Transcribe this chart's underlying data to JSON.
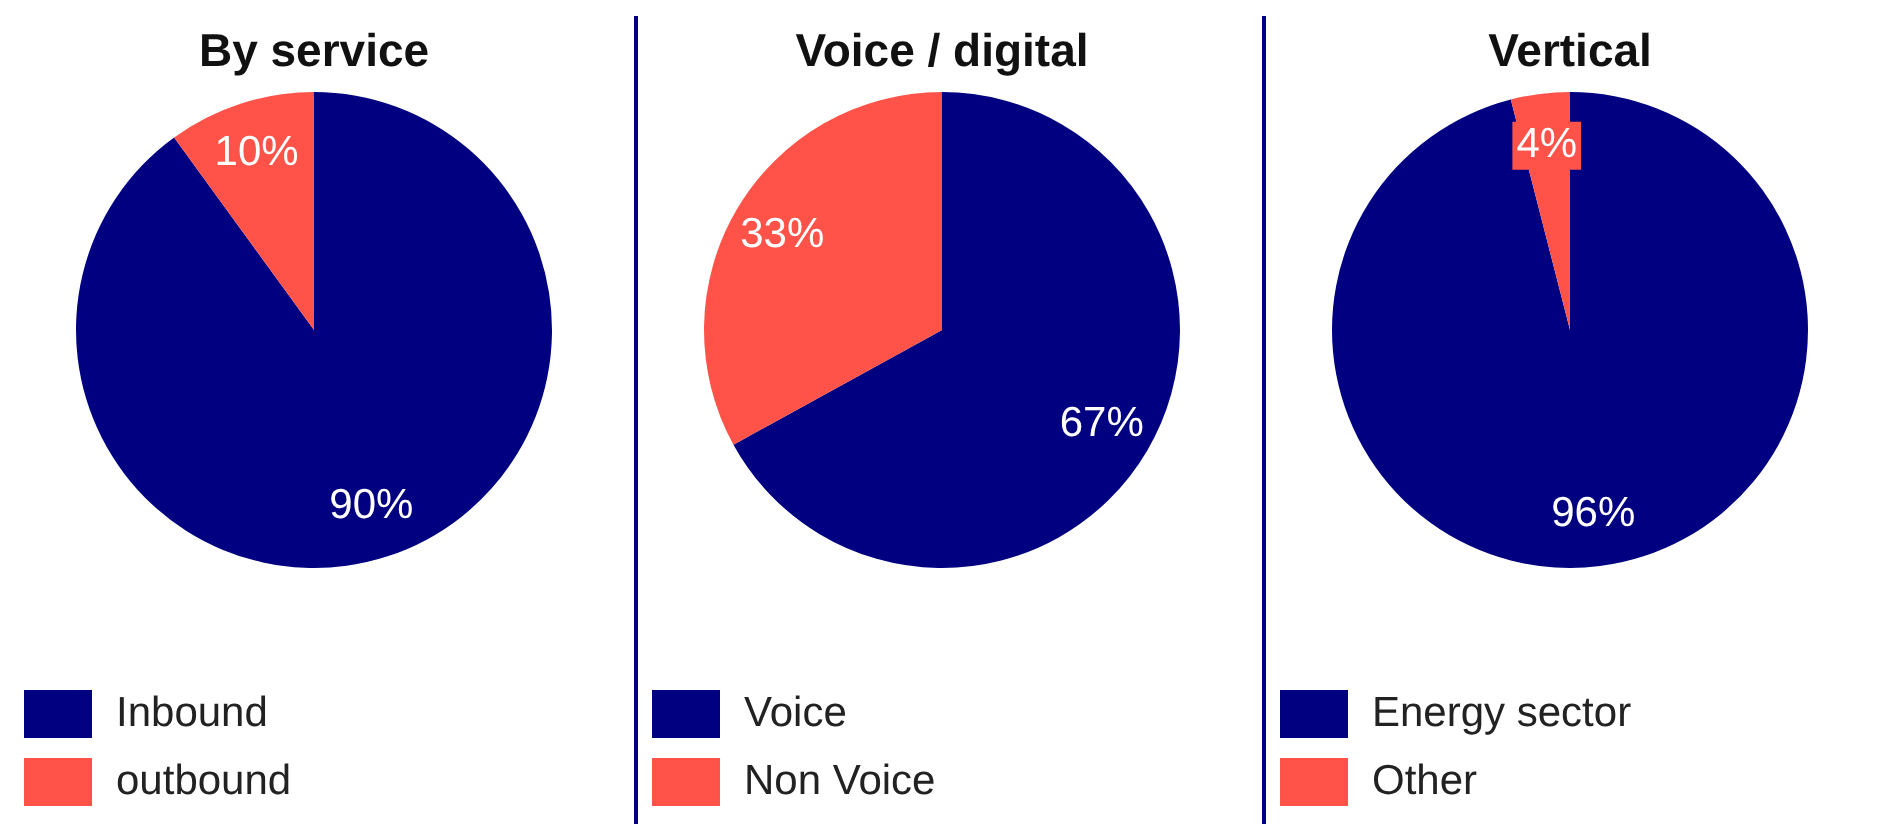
{
  "chart_data": [
    {
      "type": "pie",
      "title": "By service",
      "categories": [
        "Inbound",
        "outbound"
      ],
      "values": [
        90,
        10
      ],
      "colors": [
        "#000080",
        "#ff5349"
      ],
      "value_labels": [
        "90%",
        "10%"
      ],
      "legend": "bottom"
    },
    {
      "type": "pie",
      "title": "Voice / digital",
      "categories": [
        "Voice",
        "Non Voice"
      ],
      "values": [
        67,
        33
      ],
      "colors": [
        "#000080",
        "#ff5349"
      ],
      "value_labels": [
        "67%",
        "33%"
      ],
      "legend": "bottom"
    },
    {
      "type": "pie",
      "title": "Vertical",
      "categories": [
        "Energy sector",
        "Other"
      ],
      "values": [
        96,
        4
      ],
      "colors": [
        "#000080",
        "#ff5349"
      ],
      "value_labels": [
        "96%",
        "4%"
      ],
      "legend": "bottom"
    }
  ]
}
